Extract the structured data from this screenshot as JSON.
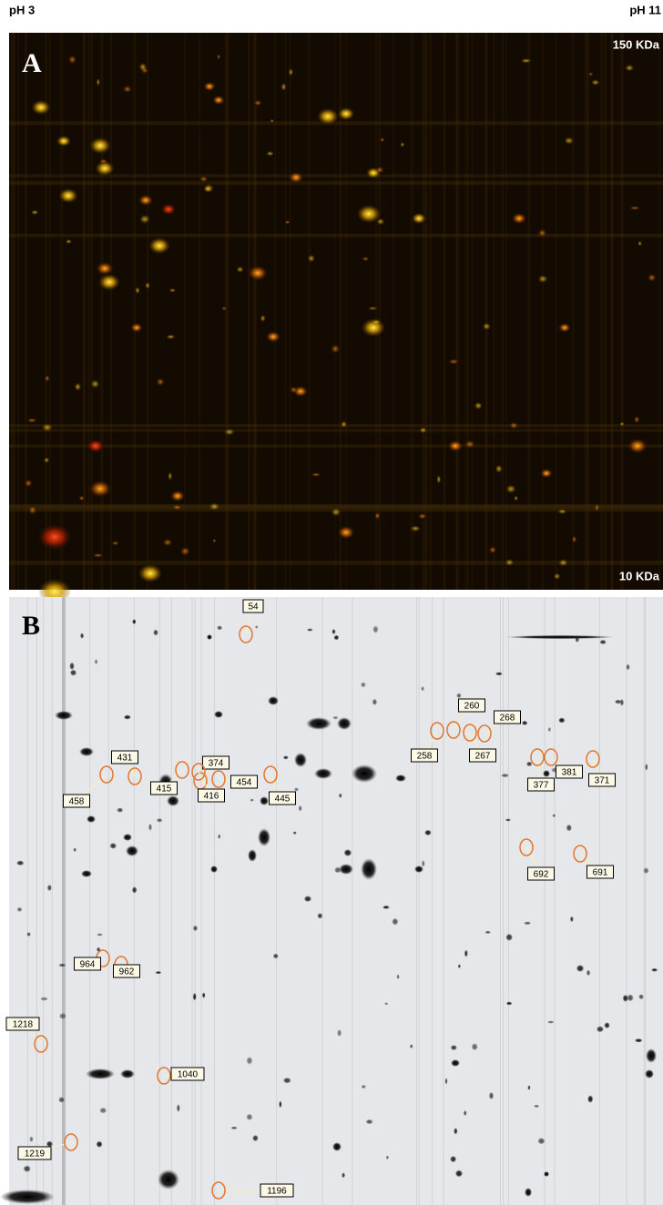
{
  "header": {
    "left_label": "pH 3",
    "right_label": "pH 11"
  },
  "panel_a": {
    "label": "A",
    "top_right_label": "150 KDa",
    "bottom_right_label": "10 KDa"
  },
  "panel_b": {
    "label": "B",
    "spots": [
      "54",
      "260",
      "268",
      "258",
      "267",
      "431",
      "374",
      "454",
      "415",
      "416",
      "445",
      "458",
      "381",
      "377",
      "371",
      "692",
      "691",
      "964",
      "962",
      "1218",
      "1040",
      "1219",
      "1196"
    ]
  }
}
